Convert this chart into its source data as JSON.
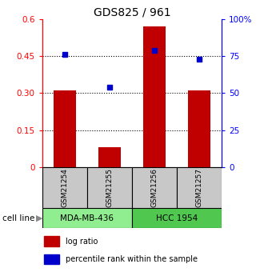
{
  "title": "GDS825 / 961",
  "samples": [
    "GSM21254",
    "GSM21255",
    "GSM21256",
    "GSM21257"
  ],
  "log_ratio": [
    0.31,
    0.08,
    0.57,
    0.31
  ],
  "percentile": [
    0.76,
    0.54,
    0.79,
    0.73
  ],
  "cell_lines": [
    {
      "label": "MDA-MB-436",
      "samples": [
        0,
        1
      ],
      "color": "#90EE90"
    },
    {
      "label": "HCC 1954",
      "samples": [
        2,
        3
      ],
      "color": "#50C850"
    }
  ],
  "bar_color": "#C00000",
  "marker_color": "#0000CD",
  "left_ylim": [
    0,
    0.6
  ],
  "right_ylim": [
    0,
    1.0
  ],
  "left_yticks": [
    0,
    0.15,
    0.3,
    0.45,
    0.6
  ],
  "right_yticks": [
    0,
    0.25,
    0.5,
    0.75,
    1.0
  ],
  "right_yticklabels": [
    "0",
    "25",
    "50",
    "75",
    "100%"
  ],
  "left_yticklabels": [
    "0",
    "0.15",
    "0.30",
    "0.45",
    "0.6"
  ],
  "hline_values": [
    0.15,
    0.3,
    0.45
  ],
  "bar_width": 0.5,
  "sample_box_color": "#C8C8C8",
  "cell_line_row_label": "cell line",
  "legend_items": [
    {
      "label": "log ratio",
      "color": "#C00000"
    },
    {
      "label": "percentile rank within the sample",
      "color": "#0000CD"
    }
  ]
}
